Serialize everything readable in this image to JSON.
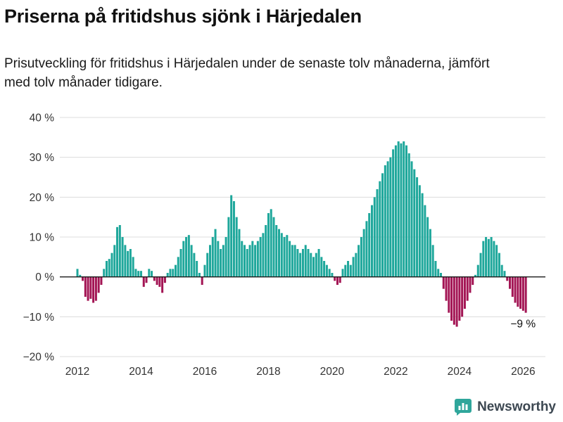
{
  "header": {
    "title": "Priserna på fritidshus sjönk i Härjedalen",
    "subtitle": "Prisutveckling för fritidshus i Härjedalen under de senaste tolv månaderna, jämfört med tolv månader tidigare."
  },
  "chart_data": {
    "type": "bar",
    "title": "Priserna på fritidshus sjönk i Härjedalen",
    "xlabel": "",
    "ylabel": "",
    "unit": "%",
    "frequency": "monthly",
    "start": {
      "year": 2012,
      "month": 1
    },
    "ylim": [
      -20,
      40
    ],
    "grid": true,
    "yticks": [
      {
        "value": 40,
        "label": "40 %"
      },
      {
        "value": 30,
        "label": "30 %"
      },
      {
        "value": 20,
        "label": "20 %"
      },
      {
        "value": 10,
        "label": "10 %"
      },
      {
        "value": 0,
        "label": "0 %"
      },
      {
        "value": -10,
        "label": "−10 %"
      },
      {
        "value": -20,
        "label": "−20 %"
      }
    ],
    "xticks": [
      {
        "year": 2012,
        "label": "2012"
      },
      {
        "year": 2014,
        "label": "2014"
      },
      {
        "year": 2016,
        "label": "2016"
      },
      {
        "year": 2018,
        "label": "2018"
      },
      {
        "year": 2020,
        "label": "2020"
      },
      {
        "year": 2022,
        "label": "2022"
      },
      {
        "year": 2024,
        "label": "2024"
      },
      {
        "year": 2026,
        "label": "2026"
      }
    ],
    "values": [
      2,
      0.5,
      -1,
      -5,
      -6,
      -5.5,
      -6.5,
      -6,
      -4,
      -2,
      2,
      4,
      4.5,
      6,
      8,
      12.5,
      13,
      10,
      8,
      6.5,
      7,
      5,
      2,
      1.5,
      1.5,
      -2.5,
      -1.5,
      2,
      1.5,
      -1,
      -2,
      -2.5,
      -4,
      -1.5,
      1,
      2,
      2,
      3,
      5,
      7,
      9,
      10,
      10.5,
      8,
      6,
      4,
      1,
      -2,
      3,
      6,
      8,
      10,
      12,
      9,
      7,
      8,
      10,
      15,
      20.5,
      19,
      15,
      12,
      9,
      8,
      7,
      8,
      9,
      8,
      9,
      10,
      11,
      13,
      16,
      17,
      15,
      13,
      12,
      11,
      10,
      10.5,
      9,
      8,
      8,
      7,
      6,
      7,
      8,
      7,
      6,
      5,
      6,
      7,
      5,
      4,
      3,
      2,
      1,
      -1,
      -2,
      -1.5,
      2,
      3,
      4,
      3,
      5,
      6,
      8,
      10,
      12,
      14,
      16,
      18,
      20,
      22,
      24,
      26,
      28,
      29,
      30,
      32,
      33,
      34,
      33.5,
      34,
      33,
      31,
      29,
      27,
      25,
      23,
      21,
      18,
      15,
      12,
      8,
      4,
      2,
      1,
      -3,
      -6,
      -9,
      -11,
      -12,
      -12.5,
      -11,
      -10,
      -8,
      -6,
      -4,
      -2,
      0.5,
      3,
      6,
      9,
      10,
      9.5,
      10,
      9,
      8,
      6,
      3,
      1.5,
      -1,
      -3,
      -5,
      -6.5,
      -7.5,
      -8,
      -8.5,
      -9
    ],
    "annotation": {
      "text": "−9 %",
      "index": 169,
      "value": -9
    },
    "colors": {
      "positive": "#1ea79b",
      "negative": "#a31554",
      "grid": "#dcdcdc",
      "zero_line": "#1a1a1a",
      "tick_text": "#333333",
      "annotation_text": "#111111"
    }
  },
  "footer": {
    "brand": "Newsworthy",
    "brand_color": "#2fa69b"
  }
}
